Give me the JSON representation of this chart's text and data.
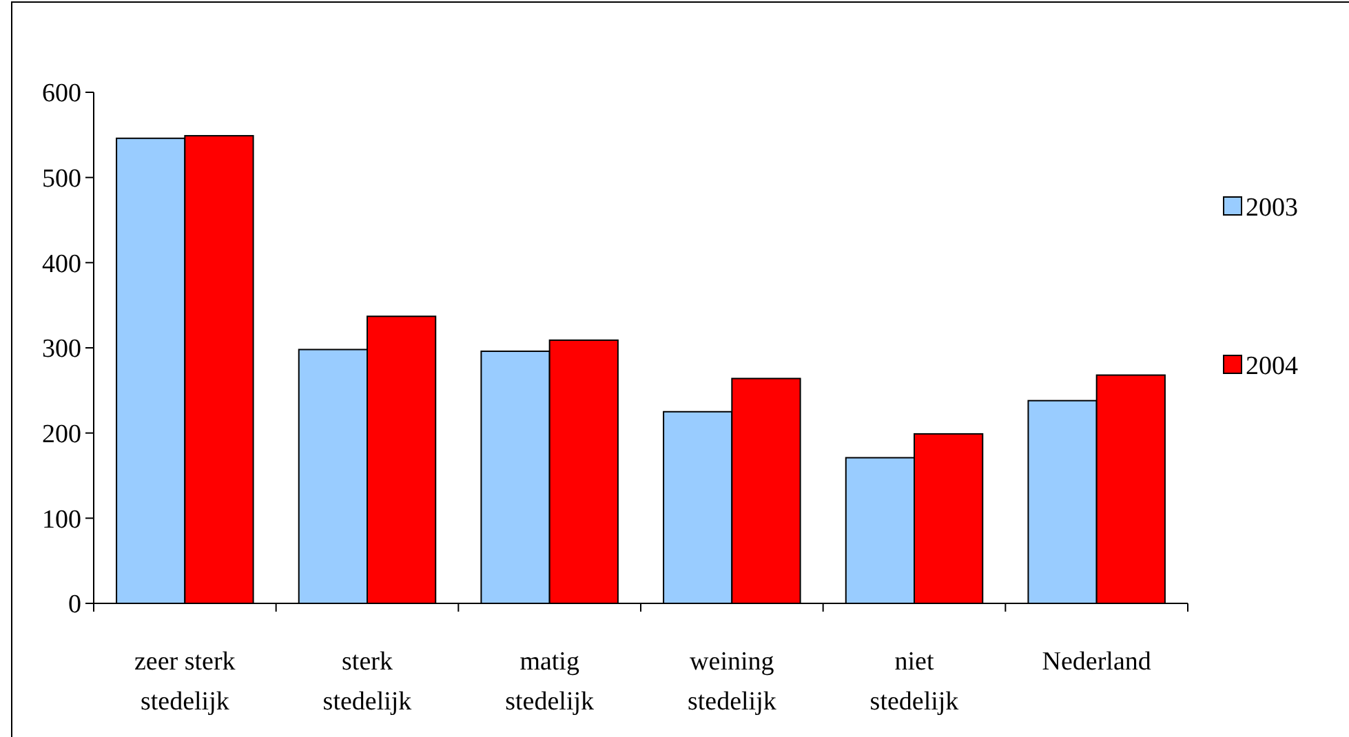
{
  "chart_data": {
    "type": "bar",
    "categories": [
      "zeer sterk stedelijk",
      "sterk stedelijk",
      "matig stedelijk",
      "weining stedelijk",
      "niet stedelijk",
      "Nederland"
    ],
    "series": [
      {
        "name": "2003",
        "color": "#99ccff",
        "values": [
          546,
          298,
          296,
          225,
          171,
          238
        ]
      },
      {
        "name": "2004",
        "color": "#ff0000",
        "values": [
          549,
          337,
          309,
          264,
          199,
          268
        ]
      }
    ],
    "ylim": [
      0,
      600
    ],
    "yticks": [
      0,
      100,
      200,
      300,
      400,
      500,
      600
    ],
    "grid": false,
    "legend": "right"
  }
}
